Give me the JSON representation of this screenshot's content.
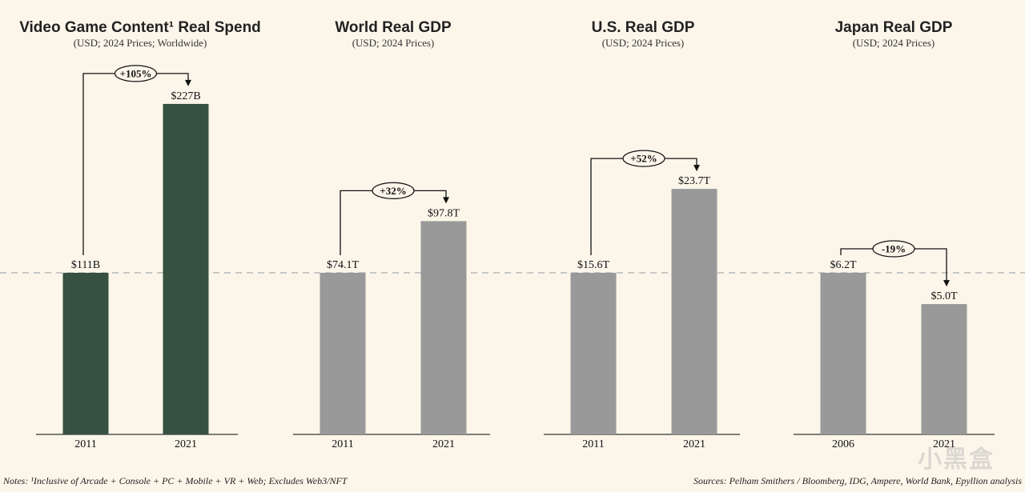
{
  "colors": {
    "background": "#fcf6ea",
    "highlight_bar": "#36513f",
    "neutral_bar": "#999999",
    "baseline": "#c8c8c8",
    "axis": "#333333"
  },
  "chart_data": [
    {
      "type": "bar",
      "title": "Video Game Content¹ Real Spend",
      "subtitle": "(USD; 2024 Prices; Worldwide)",
      "categories": [
        "2011",
        "2021"
      ],
      "values": [
        111,
        227
      ],
      "value_labels": [
        "$111B",
        "$227B"
      ],
      "unit": "B",
      "change_label": "+105%",
      "highlight": true
    },
    {
      "type": "bar",
      "title": "World Real GDP",
      "subtitle": "(USD; 2024 Prices)",
      "categories": [
        "2011",
        "2021"
      ],
      "values": [
        74.1,
        97.8
      ],
      "value_labels": [
        "$74.1T",
        "$97.8T"
      ],
      "unit": "T",
      "change_label": "+32%",
      "highlight": false
    },
    {
      "type": "bar",
      "title": "U.S. Real GDP",
      "subtitle": "(USD; 2024 Prices)",
      "categories": [
        "2011",
        "2021"
      ],
      "values": [
        15.6,
        23.7
      ],
      "value_labels": [
        "$15.6T",
        "$23.7T"
      ],
      "unit": "T",
      "change_label": "+52%",
      "highlight": false
    },
    {
      "type": "bar",
      "title": "Japan Real GDP",
      "subtitle": "(USD; 2024 Prices)",
      "categories": [
        "2006",
        "2021"
      ],
      "values": [
        6.2,
        5.0
      ],
      "value_labels": [
        "$6.2T",
        "$5.0T"
      ],
      "unit": "T",
      "change_label": "-19%",
      "highlight": false
    }
  ],
  "notes": {
    "left": "Notes: ¹Inclusive of Arcade + Console + PC + Mobile + VR + Web; Excludes Web3/NFT",
    "right": "Sources: Pelham Smithers / Bloomberg, IDG, Ampere, World Bank, Epyllion analysis"
  },
  "watermark": "小黑盒"
}
